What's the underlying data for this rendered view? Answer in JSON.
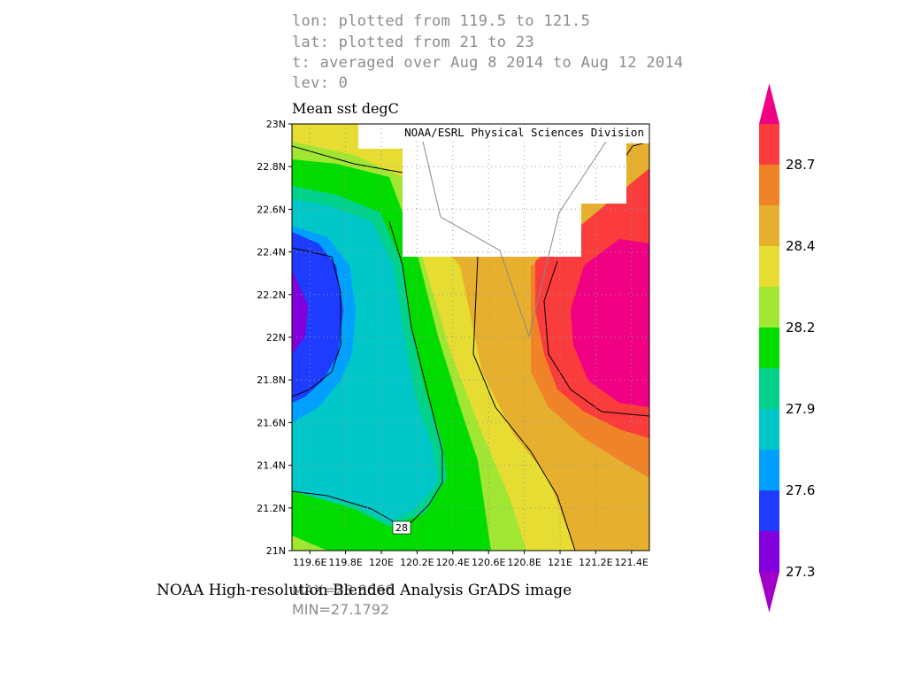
{
  "header": {
    "lon_line": "lon: plotted from 119.5 to 121.5",
    "lat_line": "lat: plotted from 21 to 23",
    "t_line": "t: averaged over Aug 8 2014 to Aug 12 2014",
    "lev_line": "lev: 0"
  },
  "footer": {
    "credit": "NOAA High-resolution Blended Analysis GrADS image",
    "max_label": "MAX=28.8666",
    "min_label": "MIN=27.1792"
  },
  "chart_data": {
    "type": "heatmap",
    "title": "Mean sst degC",
    "source_label": "NOAA/ESRL Physical Sciences Division",
    "xlim": [
      119.5,
      121.5
    ],
    "ylim": [
      21,
      23
    ],
    "x_ticks": [
      "119.6E",
      "119.8E",
      "120E",
      "120.2E",
      "120.4E",
      "120.6E",
      "120.8E",
      "121E",
      "121.2E",
      "121.4E"
    ],
    "x_tick_values": [
      119.6,
      119.8,
      120.0,
      120.2,
      120.4,
      120.6,
      120.8,
      121.0,
      121.2,
      121.4
    ],
    "y_ticks": [
      "21N",
      "21.2N",
      "21.4N",
      "21.6N",
      "21.8N",
      "22N",
      "22.2N",
      "22.4N",
      "22.6N",
      "22.8N",
      "23N"
    ],
    "y_tick_values": [
      21.0,
      21.2,
      21.4,
      21.6,
      21.8,
      22.0,
      22.2,
      22.4,
      22.6,
      22.8,
      23.0
    ],
    "contour_label": "28",
    "colorbar": {
      "labels": [
        "27.3",
        "27.6",
        "27.9",
        "28.2",
        "28.4",
        "28.7"
      ],
      "colors": [
        "#a000c8",
        "#8200dc",
        "#1e3cff",
        "#00a0ff",
        "#00c8c8",
        "#00d28c",
        "#00dc00",
        "#a0e632",
        "#e6dc32",
        "#e6af2d",
        "#f08228",
        "#fa3c3c",
        "#f00082"
      ]
    },
    "colors": {
      "purple": "#8200dc",
      "blue": "#1e3cff",
      "sky": "#00a0ff",
      "cyan": "#00c8c8",
      "teal": "#00d28c",
      "green": "#00dc00",
      "lime": "#a0e632",
      "yellow": "#e6dc32",
      "gold": "#e6af2d",
      "orange": "#f08228",
      "red": "#fa3c3c",
      "magenta": "#f00082"
    }
  }
}
